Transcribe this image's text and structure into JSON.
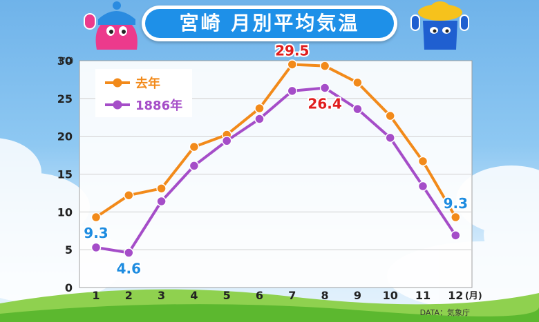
{
  "title": "宮崎 月別平均気温",
  "source": "DATA：気象庁",
  "colors": {
    "series1": "#f28a1a",
    "series2": "#a54dc8",
    "label_red": "#e01e1e",
    "label_blue": "#1e8ce0",
    "title_bg": "#1e90e8"
  },
  "chart_data": {
    "type": "line",
    "title": "宮崎 月別平均気温",
    "y_unit": "(℃)",
    "x_unit": "(月)",
    "x": [
      1,
      2,
      3,
      4,
      5,
      6,
      7,
      8,
      9,
      10,
      11,
      12
    ],
    "ylim": [
      0,
      30
    ],
    "yticks": [
      0,
      5,
      10,
      15,
      20,
      25,
      30
    ],
    "grid": true,
    "legend_position": "top-left",
    "series": [
      {
        "name": "去年",
        "values": [
          9.3,
          12.2,
          13.1,
          18.6,
          20.2,
          23.7,
          29.5,
          29.3,
          27.1,
          22.7,
          16.7,
          9.3
        ]
      },
      {
        "name": "1886年",
        "values": [
          5.3,
          4.6,
          11.4,
          16.1,
          19.4,
          22.3,
          26.0,
          26.4,
          23.6,
          19.8,
          13.4,
          6.9
        ]
      }
    ],
    "annotations": [
      {
        "text": "29.5",
        "series": 0,
        "index": 6,
        "color": "label_red",
        "pos": "above"
      },
      {
        "text": "26.4",
        "series": 1,
        "index": 7,
        "color": "label_red",
        "pos": "below"
      },
      {
        "text": "9.3",
        "series": 0,
        "index": 0,
        "color": "label_blue",
        "pos": "below"
      },
      {
        "text": "4.6",
        "series": 1,
        "index": 1,
        "color": "label_blue",
        "pos": "below"
      },
      {
        "text": "9.3",
        "series": 0,
        "index": 11,
        "color": "label_blue",
        "pos": "above"
      }
    ]
  }
}
